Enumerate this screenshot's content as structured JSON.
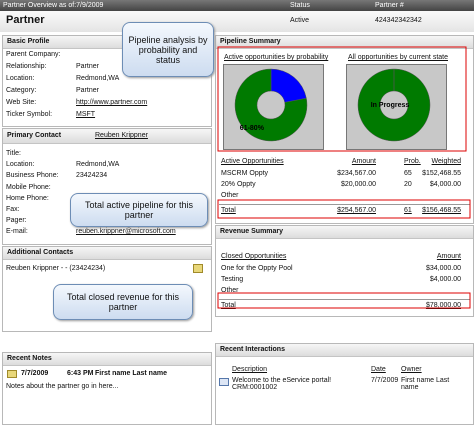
{
  "header": {
    "caption": "Partner Overview as of:7/9/2009",
    "status_label": "Status",
    "partner_no_label": "Partner #",
    "title": "Partner",
    "status": "Active",
    "partner_no": "424342342342"
  },
  "basic_profile": {
    "title": "Basic Profile",
    "rows": [
      {
        "label": "Parent Company:"
      },
      {
        "label": "Relationship:",
        "value": "Partner"
      },
      {
        "label": "Location:",
        "value": "Redmond,WA"
      },
      {
        "label": "Category:",
        "value": "Partner"
      },
      {
        "label": "Web Site:",
        "value": "http://www.partner.com"
      },
      {
        "label": "Ticker Symbol:",
        "value": "MSFT"
      }
    ]
  },
  "primary_contact": {
    "title": "Primary Contact",
    "name": "Reuben Krippner",
    "rows": [
      {
        "label": "Title:"
      },
      {
        "label": "Location:",
        "value": "Redmond,WA"
      },
      {
        "label": "Business Phone:",
        "value": "23424234"
      },
      {
        "label": "Mobile Phone:"
      },
      {
        "label": "Home Phone:"
      },
      {
        "label": "Fax:"
      },
      {
        "label": "Pager:"
      },
      {
        "label": "E-mail:",
        "value": "reuben.krippner@microsoft.com"
      }
    ]
  },
  "additional_contacts": {
    "title": "Additional Contacts",
    "items": [
      "Reuben Krippner - - (23424234)"
    ]
  },
  "recent_notes": {
    "title": "Recent Notes",
    "items": [
      {
        "date": "7/7/2009",
        "time": "6:43 PM",
        "author": "First name Last name",
        "text": "Notes about the partner go in here..."
      }
    ]
  },
  "pipeline_summary": {
    "title": "Pipeline Summary",
    "charts": [
      {
        "type": "pie",
        "title": "Active opportunities by probability",
        "slices": [
          {
            "value": 22,
            "color": "#0000ff"
          },
          {
            "label": "61-80%",
            "value": 78,
            "color": "#007a00"
          }
        ]
      },
      {
        "type": "pie",
        "title": "All opportunities by current state",
        "slices": [
          {
            "label": "In Progress",
            "value": 100,
            "color": "#007a00"
          }
        ]
      }
    ],
    "columns": [
      "Active Opportunities",
      "Amount",
      "Prob.",
      "Weighted"
    ],
    "rows": [
      [
        "MSCRM Oppty",
        "$234,567.00",
        "65",
        "$152,468.55"
      ],
      [
        "20% Oppty",
        "$20,000.00",
        "20",
        "$4,000.00"
      ],
      [
        "Other"
      ]
    ],
    "total": [
      "Total",
      "$254,567.00",
      "61",
      "$156,468.55"
    ]
  },
  "revenue_summary": {
    "title": "Revenue Summary",
    "columns": [
      "Closed Opportunities",
      "Amount"
    ],
    "rows": [
      [
        "One for the Oppty Pool",
        "$34,000.00"
      ],
      [
        "Testing",
        "$4,000.00"
      ],
      [
        "Other"
      ]
    ],
    "total": [
      "Total",
      "$78,000.00"
    ]
  },
  "recent_interactions": {
    "title": "Recent Interactions",
    "columns": [
      "Description",
      "Date",
      "Owner"
    ],
    "rows": [
      [
        "Welcome to the eService portal! CRM:0001002",
        "7/7/2009",
        "First name Last name"
      ]
    ]
  },
  "callouts": [
    "Pipeline analysis by probability and status",
    "Total active pipeline for this partner",
    "Total closed revenue for this partner"
  ]
}
